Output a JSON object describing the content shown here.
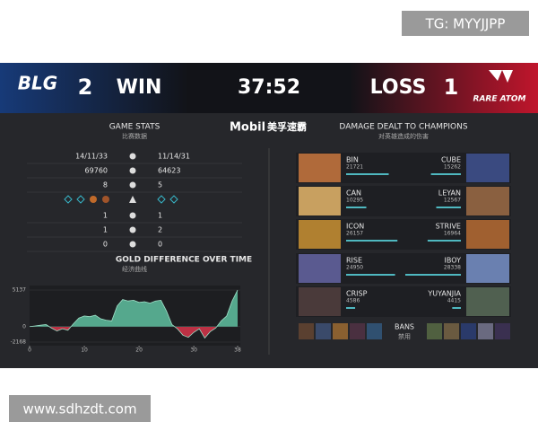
{
  "watermark_top": "TG: MYYJJPP",
  "watermark_bottom": "www.sdhzdt.com",
  "header": {
    "left_team": "BLG",
    "left_score": 2,
    "left_result": "WIN",
    "time": "37:52",
    "right_result": "LOSS",
    "right_score": 1,
    "right_team": "RARE ATOM"
  },
  "sponsor": {
    "brand": "Mobil",
    "name": "美孚速霸"
  },
  "game_stats": {
    "title": "GAME STATS",
    "subtitle": "比赛数据",
    "rows": [
      {
        "left": "14/11/33",
        "right": "11/14/31"
      },
      {
        "left": 69760,
        "right": 64623
      },
      {
        "left": 8,
        "right": 5
      },
      {
        "left": 1,
        "right": 1
      },
      {
        "left": 1,
        "right": 2
      },
      {
        "left": 0,
        "right": 0
      }
    ]
  },
  "gold_chart": {
    "title": "GOLD DIFFERENCE OVER TIME",
    "subtitle": "经济曲线",
    "x": [
      0,
      1,
      2,
      3,
      4,
      5,
      6,
      7,
      8,
      9,
      10,
      11,
      12,
      13,
      14,
      15,
      16,
      17,
      18,
      19,
      20,
      21,
      22,
      23,
      24,
      25,
      26,
      27,
      28,
      29,
      30,
      31,
      32,
      33,
      34,
      35,
      36,
      37,
      38
    ],
    "values": [
      0,
      100,
      200,
      300,
      -200,
      -600,
      -300,
      -500,
      400,
      1200,
      1500,
      1400,
      1600,
      1100,
      900,
      800,
      2900,
      3800,
      3600,
      3700,
      3400,
      3500,
      3300,
      3600,
      3700,
      2200,
      300,
      -300,
      -1200,
      -1500,
      -800,
      -300,
      -1600,
      -700,
      -200,
      800,
      1500,
      3600,
      5137
    ],
    "xlim": [
      0,
      38
    ],
    "ylim": [
      -2168,
      5137
    ],
    "xticks": [
      0,
      10,
      20,
      30,
      38
    ],
    "yticks": [
      5137,
      0,
      -2168
    ]
  },
  "damage": {
    "title": "DAMAGE DEALT TO CHAMPIONS",
    "subtitle": "对英雄造成的伤害",
    "left": [
      {
        "name": "BIN",
        "value": 21721
      },
      {
        "name": "CAN",
        "value": 10295
      },
      {
        "name": "ICON",
        "value": 26157
      },
      {
        "name": "RISE",
        "value": 24950
      },
      {
        "name": "CRISP",
        "value": 4586
      }
    ],
    "right": [
      {
        "name": "CUBE",
        "value": 15262
      },
      {
        "name": "LEYAN",
        "value": 12567
      },
      {
        "name": "STRIVE",
        "value": 16964
      },
      {
        "name": "IBOY",
        "value": 28338
      },
      {
        "name": "YUYANJIA",
        "value": 4415
      }
    ]
  },
  "bans": {
    "title": "BANS",
    "subtitle": "禁用"
  }
}
